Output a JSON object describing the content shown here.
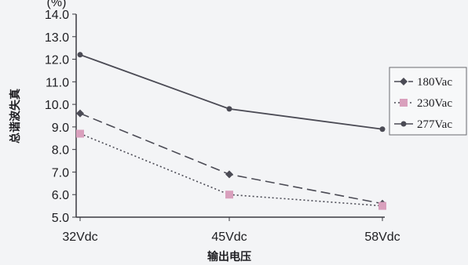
{
  "chart_data": {
    "type": "line",
    "title": "",
    "xlabel": "输出电压",
    "ylabel": "总谐波失真",
    "yunit": "(%)",
    "categories": [
      "32Vdc",
      "45Vdc",
      "58Vdc"
    ],
    "ylim": [
      5.0,
      14.0
    ],
    "yticks": [
      "5.0",
      "6.0",
      "7.0",
      "8.0",
      "9.0",
      "10.0",
      "11.0",
      "12.0",
      "13.0",
      "14.0"
    ],
    "grid": false,
    "legend_position": "right",
    "series": [
      {
        "name": "180Vac",
        "values": [
          9.6,
          6.9,
          5.6
        ],
        "color": "#4b4b55",
        "marker": "diamond",
        "dash": "long-dash"
      },
      {
        "name": "230Vac",
        "values": [
          8.7,
          6.0,
          5.5
        ],
        "color": "#4b4b55",
        "marker": "square",
        "marker_color": "#d9a0bd",
        "dash": "dotted"
      },
      {
        "name": "277Vac",
        "values": [
          12.2,
          9.8,
          8.9
        ],
        "color": "#4b4b55",
        "marker": "circle",
        "dash": "solid"
      }
    ]
  }
}
